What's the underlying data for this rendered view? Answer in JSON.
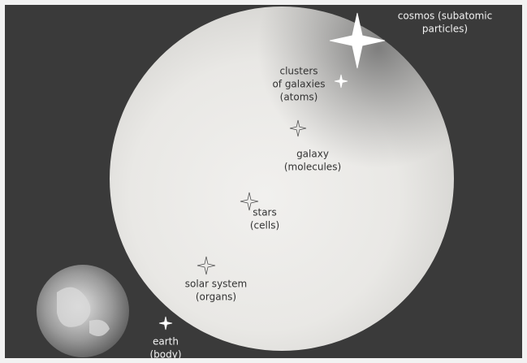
{
  "nodes": [
    {
      "lines": [
        "cosmos (subatomic",
        "particles)"
      ]
    },
    {
      "lines": [
        "clusters",
        "of galaxies",
        "(atoms)"
      ]
    },
    {
      "lines": [
        "galaxy",
        "(molecules)"
      ]
    },
    {
      "lines": [
        "stars",
        "(cells)"
      ]
    },
    {
      "lines": [
        "solar system",
        "(organs)"
      ]
    },
    {
      "lines": [
        "earth",
        "(body)"
      ]
    }
  ]
}
